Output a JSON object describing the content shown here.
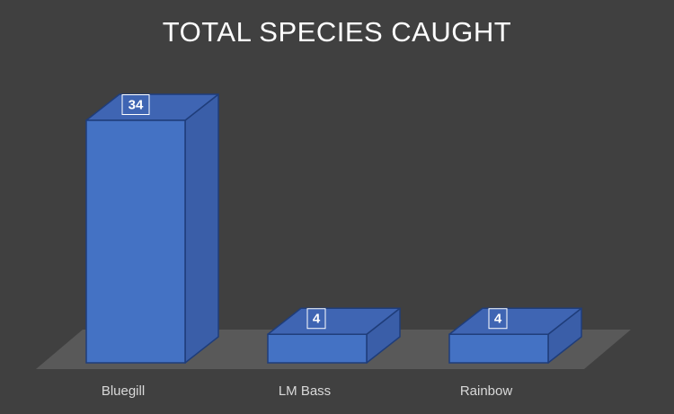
{
  "chart_data": {
    "type": "bar",
    "title": "TOTAL SPECIES CAUGHT",
    "categories": [
      "Bluegill",
      "LM Bass",
      "Rainbow"
    ],
    "values": [
      34,
      4,
      4
    ],
    "style": "3d-column",
    "data_labels": true,
    "grid": false,
    "legend": "none",
    "colors": {
      "background": "#404040",
      "bar_front": "#4472c4",
      "bar_top": "#3f65b3",
      "bar_side": "#3a5ea8",
      "bar_edge": "#1f3d7a",
      "floor": "#595959",
      "title": "#ffffff",
      "category_text": "#d9d9d9"
    }
  }
}
